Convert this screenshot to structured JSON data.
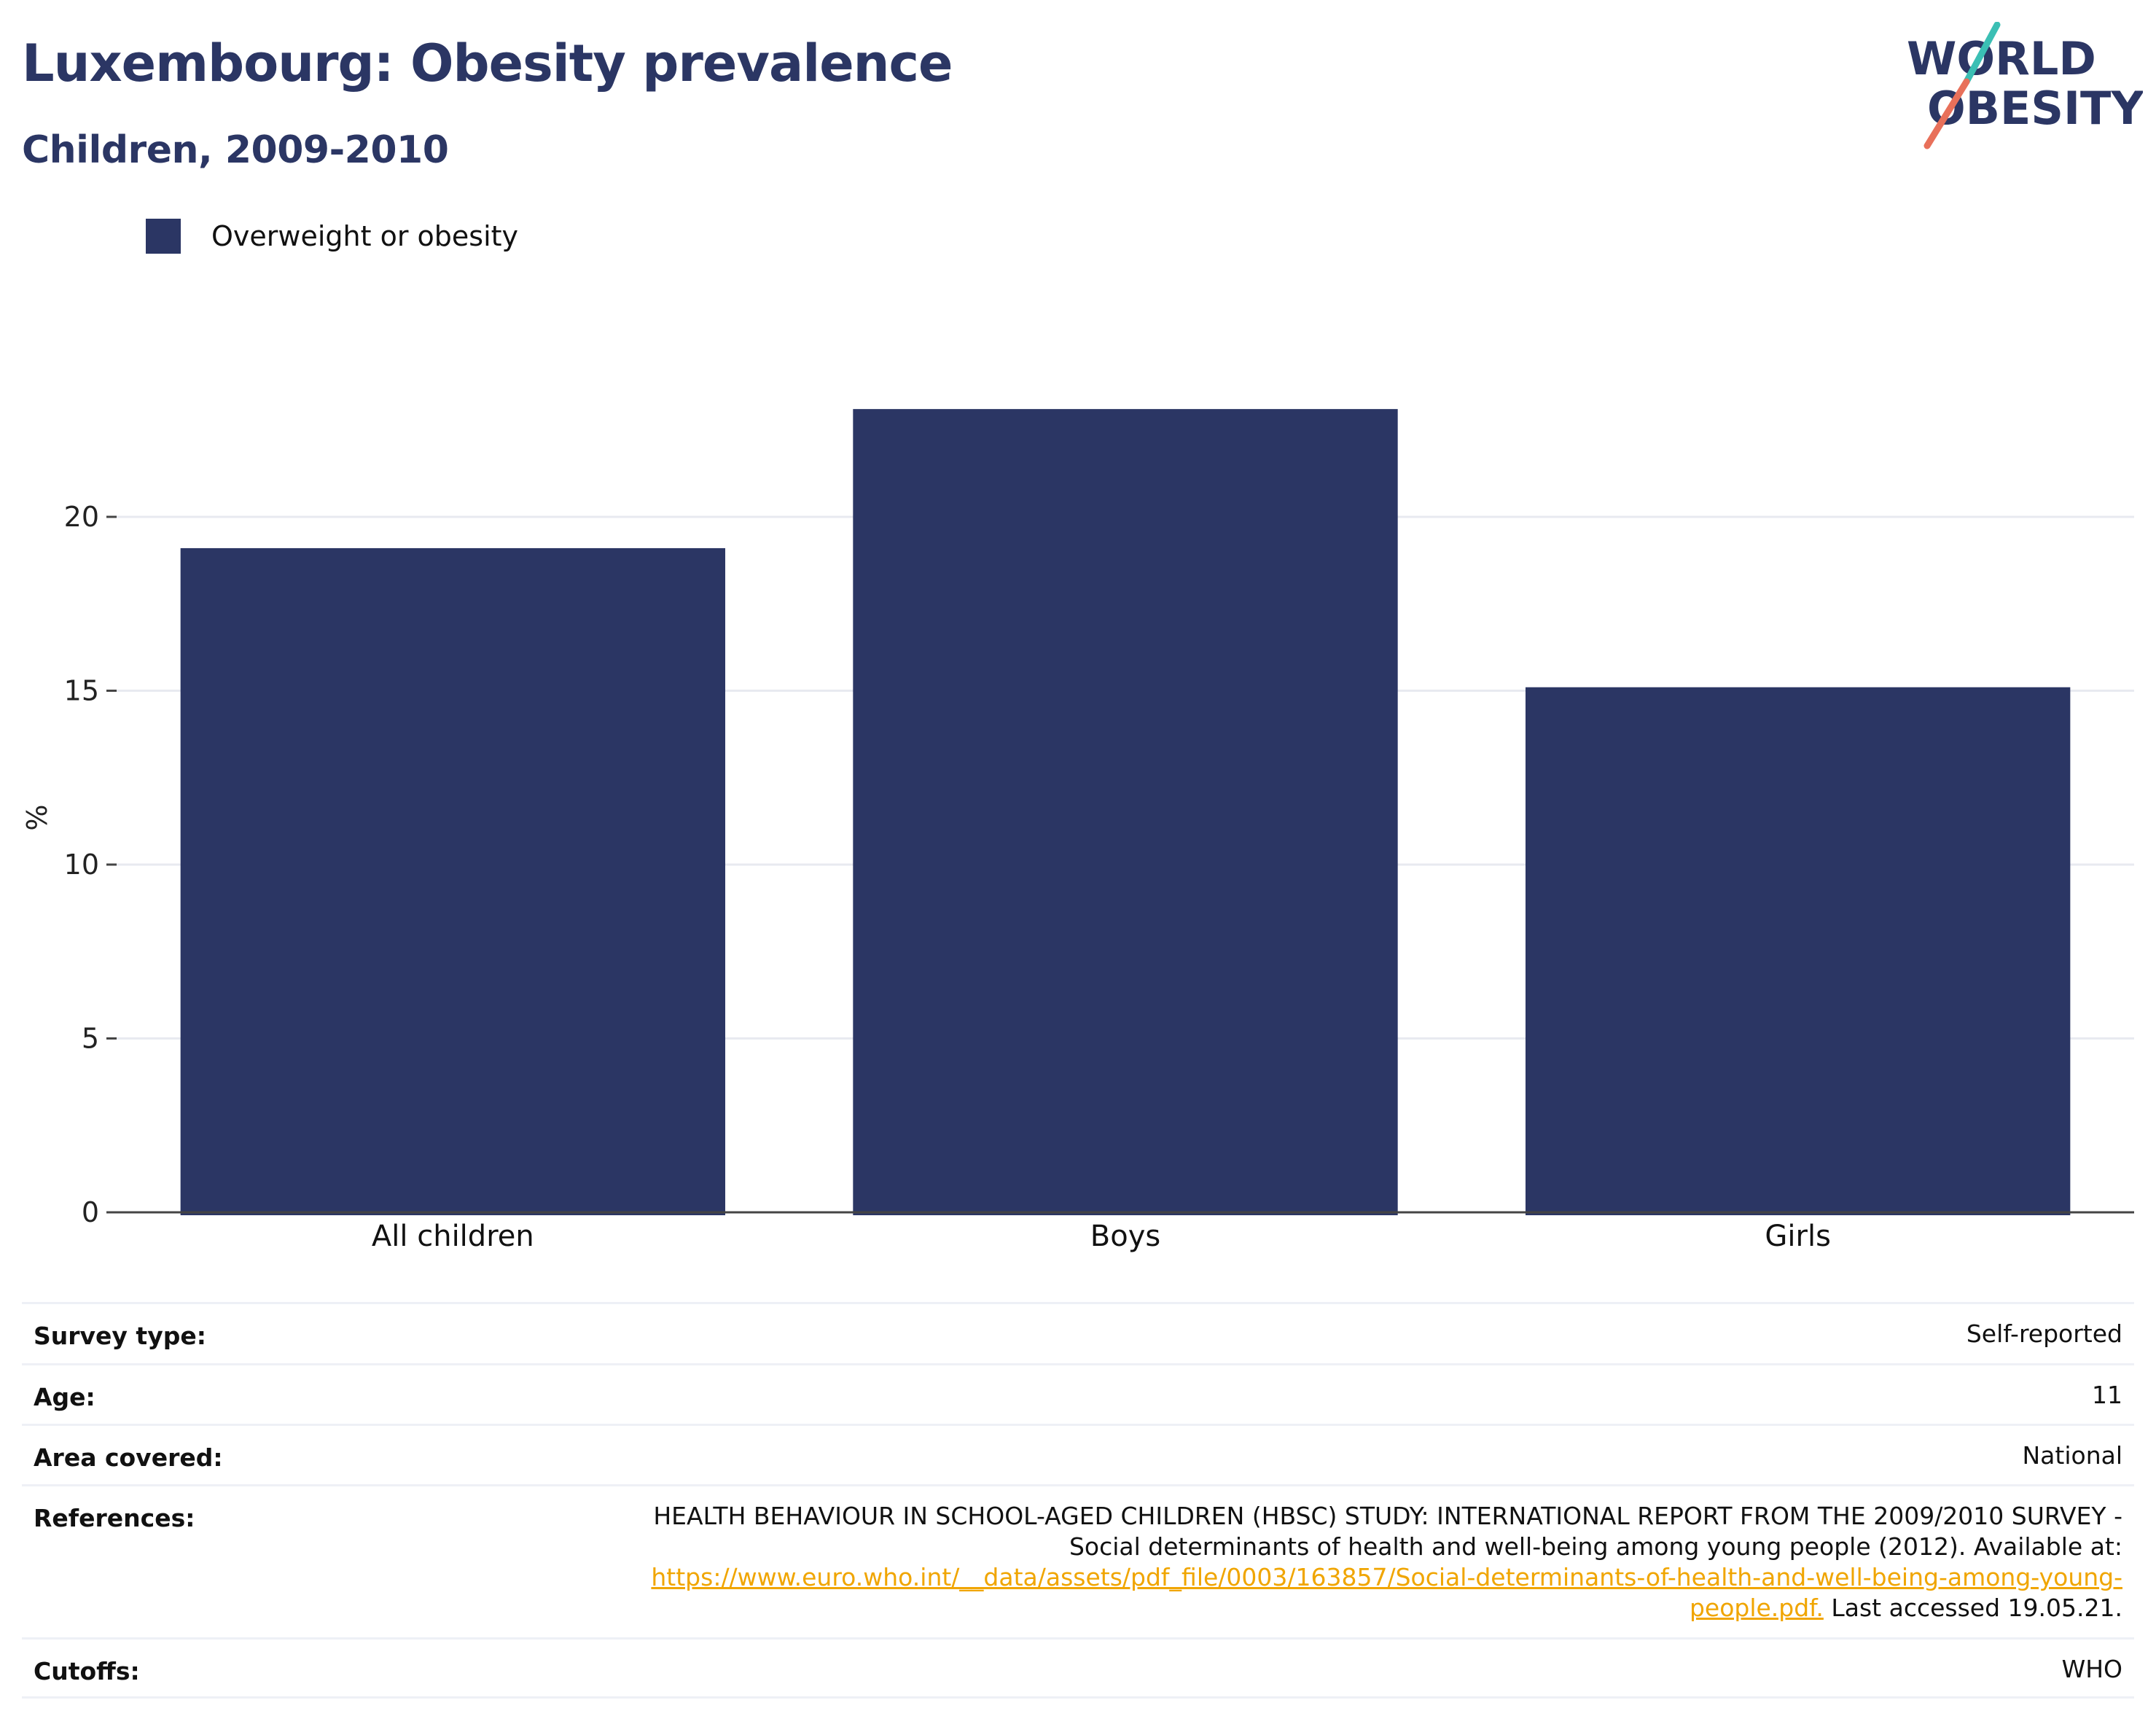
{
  "header": {
    "title": "Luxembourg: Obesity prevalence",
    "subtitle": "Children, 2009-2010"
  },
  "logo": {
    "line1": "WORLD",
    "line2": "OBESITY",
    "text_color": "#2b3664",
    "slash_top_color": "#3bbfb4",
    "slash_bottom_color": "#e8705a"
  },
  "legend": {
    "items": [
      {
        "label": "Overweight or obesity",
        "color": "#2b3664"
      }
    ]
  },
  "chart_data": {
    "type": "bar",
    "categories": [
      "All children",
      "Boys",
      "Girls"
    ],
    "series": [
      {
        "name": "Overweight or obesity",
        "values": [
          19.1,
          23.1,
          15.1
        ],
        "color": "#2b3664"
      }
    ],
    "ylabel": "%",
    "xlabel": "",
    "ylim": [
      0,
      23.1
    ],
    "yticks": [
      0,
      5,
      10,
      15,
      20
    ],
    "grid": true,
    "legend_position": "top-left"
  },
  "info": {
    "survey_type": {
      "label": "Survey type:",
      "value": "Self-reported"
    },
    "age": {
      "label": "Age:",
      "value": "11"
    },
    "area": {
      "label": "Area covered:",
      "value": "National"
    },
    "references": {
      "label": "References:",
      "line1": "HEALTH BEHAVIOUR IN SCHOOL-AGED CHILDREN (HBSC) STUDY: INTERNATIONAL REPORT FROM THE 2009/2010 SURVEY -",
      "line2": "Social determinants of health and well-being among young people (2012). Available at:",
      "link_line1": "https://www.euro.who.int/__data/assets/pdf_file/0003/163857/Social-determinants-of-health-and-well-being-among-young-",
      "link_line2": "people.pdf.",
      "suffix": " Last accessed 19.05.21."
    },
    "cutoffs": {
      "label": "Cutoffs:",
      "value": "WHO"
    }
  }
}
